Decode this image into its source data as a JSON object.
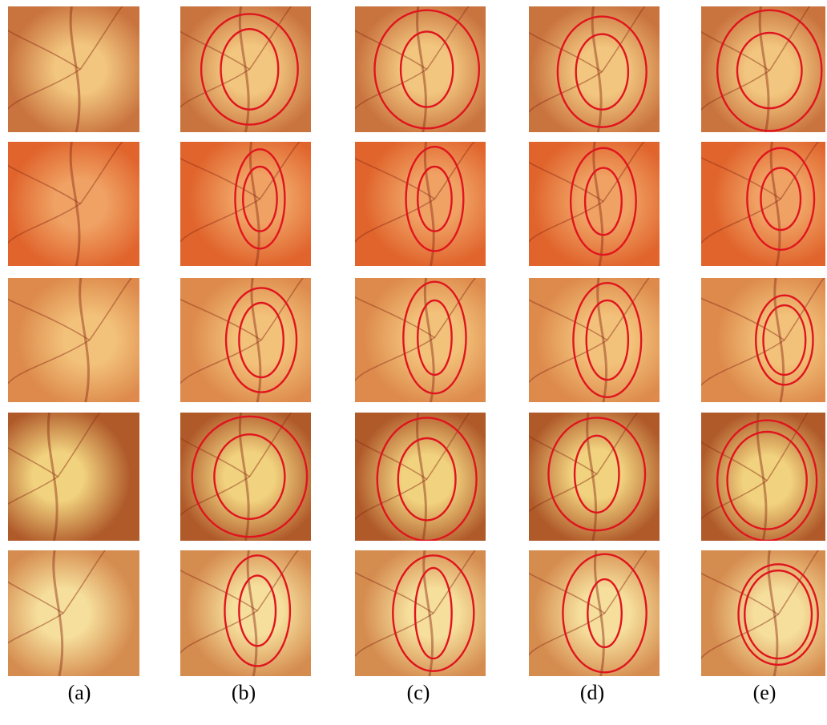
{
  "figure": {
    "column_labels": [
      "(a)",
      "(b)",
      "(c)",
      "(d)",
      "(e)"
    ],
    "columns": [
      "a",
      "b",
      "c",
      "d",
      "e"
    ],
    "rows": [
      {
        "tone": "#c9733e",
        "disc": "#f2c67e"
      },
      {
        "tone": "#e0642c",
        "disc": "#f0a264"
      },
      {
        "tone": "#dd8a4c",
        "disc": "#f3c27a"
      },
      {
        "tone": "#b05a2a",
        "disc": "#f1d27e"
      },
      {
        "tone": "#d58c4f",
        "disc": "#f6df9c"
      }
    ],
    "outline_color": "#e0141e"
  }
}
